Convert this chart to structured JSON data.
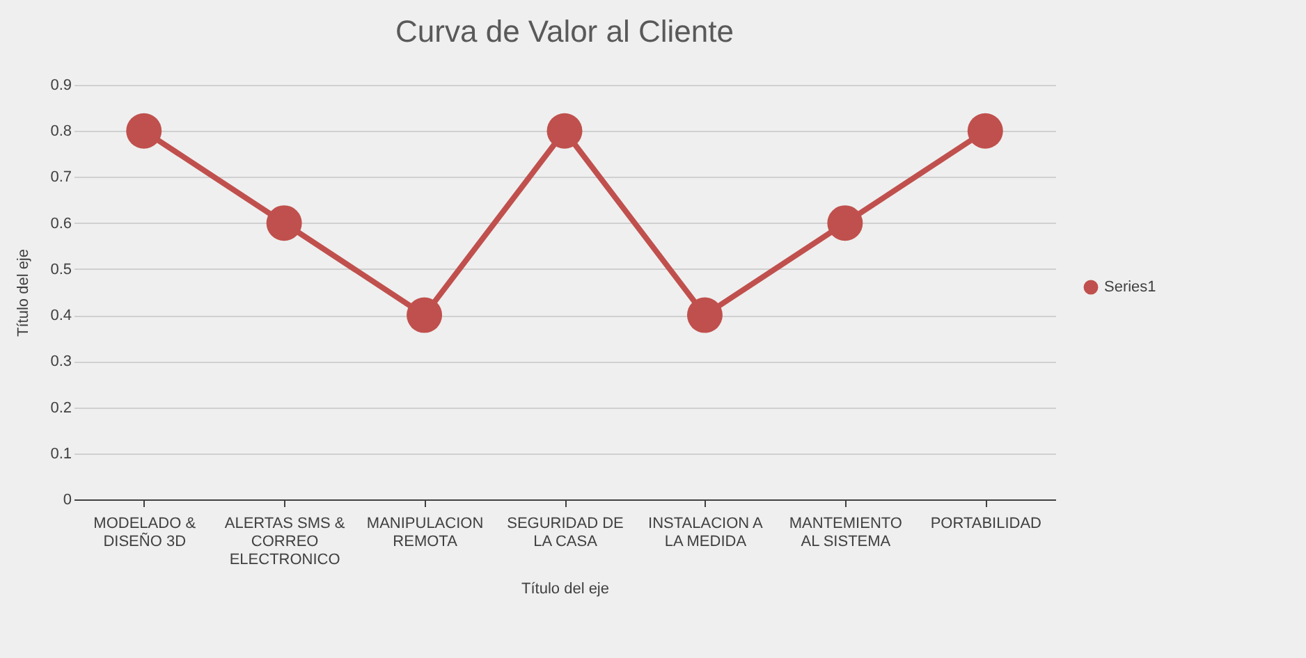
{
  "chart_data": {
    "type": "line",
    "title": "Curva de Valor al Cliente",
    "xlabel": "Título del eje",
    "ylabel": "Título del eje",
    "categories": [
      "MODELADO  & DISEÑO 3D",
      "ALERTAS SMS & CORREO ELECTRONICO",
      "MANIPULACION REMOTA",
      "SEGURIDAD DE LA CASA",
      "INSTALACION A LA MEDIDA",
      "MANTEMIENTO AL SISTEMA",
      "PORTABILIDAD"
    ],
    "series": [
      {
        "name": "Series1",
        "color": "#c0504d",
        "values": [
          0.8,
          0.6,
          0.4,
          0.8,
          0.4,
          0.6,
          0.8
        ]
      }
    ],
    "ylim": [
      0,
      0.9
    ],
    "yticks": [
      0,
      0.1,
      0.2,
      0.3,
      0.4,
      0.5,
      0.6,
      0.7,
      0.8,
      0.9
    ],
    "grid": "y",
    "legend": "right",
    "marker": "circle",
    "line_style": "solid"
  }
}
